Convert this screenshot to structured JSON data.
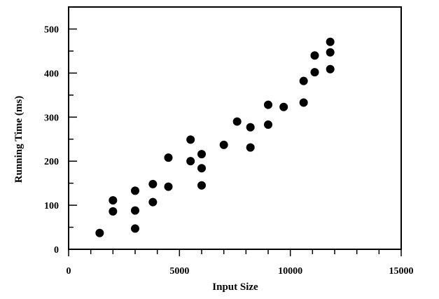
{
  "chart_data": {
    "type": "scatter",
    "xlabel": "Input Size",
    "ylabel": "Running Time (ms)",
    "xlim": [
      0,
      15000
    ],
    "ylim": [
      0,
      550
    ],
    "xticks": [
      0,
      5000,
      10000,
      15000
    ],
    "yticks": [
      0,
      100,
      200,
      300,
      400,
      500
    ],
    "x_minor_step": 1000,
    "y_minor_step": 50,
    "grid": false,
    "marker_color": "#000000",
    "series": [
      {
        "points": [
          [
            1400,
            37
          ],
          [
            2000,
            111
          ],
          [
            2000,
            86
          ],
          [
            3000,
            133
          ],
          [
            3000,
            88
          ],
          [
            3000,
            47
          ],
          [
            3800,
            148
          ],
          [
            3800,
            107
          ],
          [
            4500,
            208
          ],
          [
            4500,
            142
          ],
          [
            5500,
            249
          ],
          [
            5500,
            200
          ],
          [
            6000,
            216
          ],
          [
            6000,
            184
          ],
          [
            6000,
            145
          ],
          [
            7000,
            237
          ],
          [
            7600,
            290
          ],
          [
            8200,
            277
          ],
          [
            8200,
            231
          ],
          [
            9000,
            328
          ],
          [
            9000,
            283
          ],
          [
            9700,
            323
          ],
          [
            10600,
            382
          ],
          [
            10600,
            333
          ],
          [
            11100,
            440
          ],
          [
            11100,
            402
          ],
          [
            11800,
            471
          ],
          [
            11800,
            447
          ],
          [
            11800,
            409
          ]
        ]
      }
    ]
  }
}
